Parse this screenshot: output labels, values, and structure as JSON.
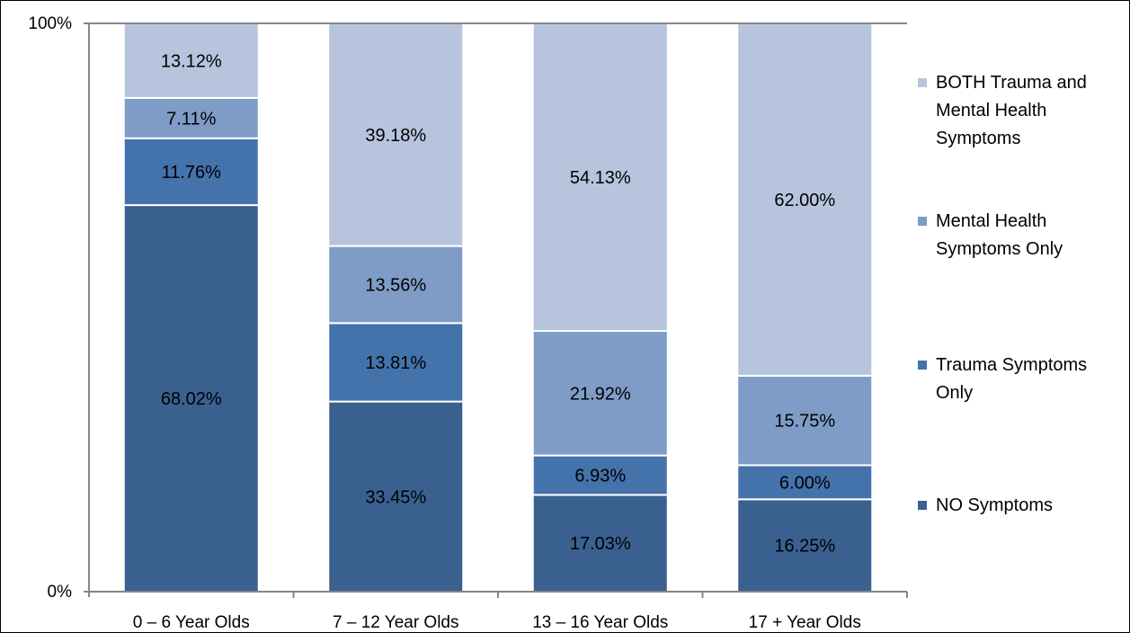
{
  "chart_data": {
    "type": "bar",
    "stacked": true,
    "percent": true,
    "categories": [
      "0 – 6 Year Olds",
      "7 – 12 Year Olds",
      "13 – 16 Year Olds",
      "17 + Year Olds"
    ],
    "series": [
      {
        "name": "NO Symptoms",
        "values": [
          68.02,
          33.45,
          17.03,
          16.25
        ],
        "labels": [
          "68.02%",
          "33.45%",
          "17.03%",
          "16.25%"
        ],
        "color": "#3A6090"
      },
      {
        "name": "Trauma Symptoms Only",
        "values": [
          11.76,
          13.81,
          6.93,
          6.0
        ],
        "labels": [
          "11.76%",
          "13.81%",
          "6.93%",
          "6.00%"
        ],
        "color": "#4472AB"
      },
      {
        "name": "Mental Health Symptoms Only",
        "values": [
          7.11,
          13.56,
          21.92,
          15.75
        ],
        "labels": [
          "7.11%",
          "13.56%",
          "21.92%",
          "15.75%"
        ],
        "color": "#7E9CC6"
      },
      {
        "name": "BOTH Trauma and Mental Health Symptoms",
        "values": [
          13.12,
          39.18,
          54.13,
          62.0
        ],
        "labels": [
          "13.12%",
          "39.18%",
          "54.13%",
          "62.00%"
        ],
        "color": "#B6C4DE"
      }
    ],
    "y_ticks": [
      "0%",
      "100%"
    ],
    "ylim": [
      0,
      100
    ],
    "legend": {
      "placement": "right",
      "entries": [
        {
          "series": 3,
          "lines": [
            "BOTH Trauma and",
            "Mental Health",
            "Symptoms"
          ]
        },
        {
          "series": 2,
          "lines": [
            "Mental Health",
            "Symptoms Only"
          ]
        },
        {
          "series": 1,
          "lines": [
            "Trauma Symptoms",
            "Only"
          ]
        },
        {
          "series": 0,
          "lines": [
            "NO Symptoms"
          ]
        }
      ]
    },
    "grid": false
  }
}
